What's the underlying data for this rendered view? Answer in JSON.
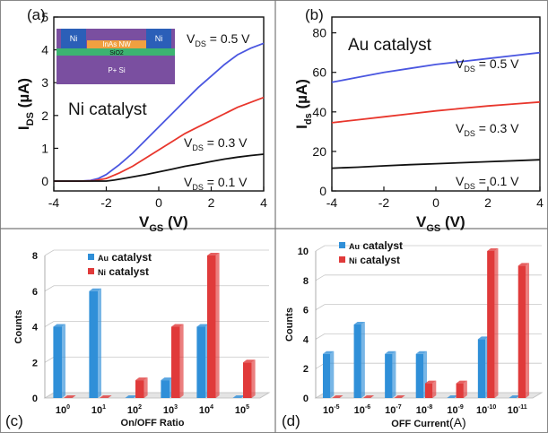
{
  "colors": {
    "blue": "#4a56e0",
    "red": "#e8362c",
    "black": "#111111",
    "bar_blue": "#2f8fd8",
    "bar_red": "#e03a3a",
    "grid": "#c8c8c8",
    "frame": "#6a6a6a"
  },
  "chart_data": [
    {
      "panel": "(a)",
      "type": "line",
      "annotation": "Ni catalyst",
      "xlabel_main": "V",
      "xlabel_sub": "GS",
      "xlabel_unit": "(V)",
      "ylabel_main": "I",
      "ylabel_sub": "DS",
      "ylabel_unit": "(µA)",
      "xlim": [
        -4,
        4
      ],
      "ylim": [
        -0.3,
        5
      ],
      "xticks": [
        "-4",
        "-2",
        "0",
        "2",
        "4"
      ],
      "yticks": [
        "0",
        "1",
        "2",
        "3",
        "4",
        "5"
      ],
      "inset_labels": {
        "left": "Ni",
        "right": "Ni",
        "wire": "InAs NW",
        "oxide": "SiO2",
        "substrate": "P+ Si"
      },
      "series": [
        {
          "name": "V_DS = 0.5 V",
          "label_main": "V",
          "label_sub": "DS",
          "label_val": "= 0.5 V",
          "color": "blue",
          "points": [
            [
              -4,
              0
            ],
            [
              -3,
              0
            ],
            [
              -2.6,
              0.02
            ],
            [
              -2.3,
              0.08
            ],
            [
              -2,
              0.2
            ],
            [
              -1.5,
              0.5
            ],
            [
              -1,
              0.85
            ],
            [
              -0.5,
              1.25
            ],
            [
              0,
              1.65
            ],
            [
              0.5,
              2.05
            ],
            [
              1,
              2.45
            ],
            [
              1.5,
              2.85
            ],
            [
              2,
              3.2
            ],
            [
              2.5,
              3.55
            ],
            [
              3,
              3.85
            ],
            [
              3.5,
              4.05
            ],
            [
              4,
              4.2
            ]
          ]
        },
        {
          "name": "V_DS = 0.3 V",
          "label_main": "V",
          "label_sub": "DS",
          "label_val": "= 0.3 V",
          "color": "red",
          "points": [
            [
              -4,
              0
            ],
            [
              -3,
              0
            ],
            [
              -2.5,
              0.01
            ],
            [
              -2,
              0.08
            ],
            [
              -1.5,
              0.25
            ],
            [
              -1,
              0.45
            ],
            [
              -0.5,
              0.7
            ],
            [
              0,
              0.95
            ],
            [
              0.5,
              1.2
            ],
            [
              1,
              1.45
            ],
            [
              1.5,
              1.65
            ],
            [
              2,
              1.85
            ],
            [
              2.5,
              2.05
            ],
            [
              3,
              2.25
            ],
            [
              3.5,
              2.4
            ],
            [
              4,
              2.55
            ]
          ]
        },
        {
          "name": "V_DS = 0.1 V",
          "label_main": "V",
          "label_sub": "DS",
          "label_val": "= 0.1 V",
          "color": "black",
          "points": [
            [
              -4,
              0
            ],
            [
              -3,
              0
            ],
            [
              -2,
              0
            ],
            [
              -1.7,
              0.03
            ],
            [
              -1.2,
              0.1
            ],
            [
              -0.5,
              0.2
            ],
            [
              0,
              0.28
            ],
            [
              0.5,
              0.36
            ],
            [
              1,
              0.45
            ],
            [
              1.5,
              0.52
            ],
            [
              2,
              0.6
            ],
            [
              2.5,
              0.67
            ],
            [
              3,
              0.73
            ],
            [
              3.5,
              0.78
            ],
            [
              4,
              0.82
            ]
          ]
        }
      ]
    },
    {
      "panel": "(b)",
      "type": "line",
      "annotation": "Au catalyst",
      "xlabel_main": "V",
      "xlabel_sub": "GS",
      "xlabel_unit": "(V)",
      "ylabel_main": "I",
      "ylabel_sub": "ds",
      "ylabel_unit": "(µA)",
      "xlim": [
        -4,
        4
      ],
      "ylim": [
        0,
        88
      ],
      "xticks": [
        "-4",
        "-2",
        "0",
        "2",
        "4"
      ],
      "yticks": [
        "0",
        "20",
        "40",
        "60",
        "80"
      ],
      "series": [
        {
          "name": "V_DS = 0.5 V",
          "label_main": "V",
          "label_sub": "DS",
          "label_val": "= 0.5 V",
          "color": "blue",
          "points": [
            [
              -4,
              55
            ],
            [
              -3,
              57.5
            ],
            [
              -2,
              60
            ],
            [
              -1,
              62
            ],
            [
              0,
              64
            ],
            [
              1,
              65.5
            ],
            [
              2,
              67
            ],
            [
              3,
              68.5
            ],
            [
              4,
              70
            ]
          ]
        },
        {
          "name": "V_DS = 0.3 V",
          "label_main": "V",
          "label_sub": "DS",
          "label_val": "= 0.3 V",
          "color": "red",
          "points": [
            [
              -4,
              34.5
            ],
            [
              -3,
              36
            ],
            [
              -2,
              37.5
            ],
            [
              -1,
              39
            ],
            [
              0,
              40.5
            ],
            [
              1,
              41.8
            ],
            [
              2,
              43
            ],
            [
              3,
              44
            ],
            [
              4,
              45
            ]
          ]
        },
        {
          "name": "V_DS = 0.1 V",
          "label_main": "V",
          "label_sub": "DS",
          "label_val": "= 0.1 V",
          "color": "black",
          "points": [
            [
              -4,
              11.5
            ],
            [
              -3,
              12
            ],
            [
              -2,
              12.7
            ],
            [
              -1,
              13.3
            ],
            [
              0,
              13.8
            ],
            [
              1,
              14.3
            ],
            [
              2,
              14.8
            ],
            [
              3,
              15.3
            ],
            [
              4,
              15.8
            ]
          ]
        }
      ]
    },
    {
      "panel": "(c)",
      "type": "bar",
      "xlabel": "On/OFF Ratio",
      "ylabel": "Counts",
      "ylim": [
        0,
        8
      ],
      "yticks": [
        "0",
        "2",
        "4",
        "6",
        "8"
      ],
      "categories": [
        {
          "base": "10",
          "exp": "0"
        },
        {
          "base": "10",
          "exp": "1"
        },
        {
          "base": "10",
          "exp": "2"
        },
        {
          "base": "10",
          "exp": "3"
        },
        {
          "base": "10",
          "exp": "4"
        },
        {
          "base": "10",
          "exp": "5"
        }
      ],
      "series": [
        {
          "name": "Au catalyst",
          "name_small": "Au",
          "name_rest": "catalyst",
          "color": "bar_blue",
          "values": [
            4,
            6,
            0,
            1,
            4,
            0
          ]
        },
        {
          "name": "Ni catalyst",
          "name_small": "Ni",
          "name_rest": "catalyst",
          "color": "bar_red",
          "values": [
            0,
            0,
            1,
            4,
            8,
            2
          ]
        }
      ]
    },
    {
      "panel": "(d)",
      "type": "bar",
      "xlabel_main": "OFF Current",
      "xlabel_unit": "(A)",
      "ylabel": "Counts",
      "ylim": [
        0,
        10
      ],
      "yticks": [
        "0",
        "2",
        "4",
        "6",
        "8",
        "10"
      ],
      "categories": [
        {
          "base": "10",
          "exp": "-5"
        },
        {
          "base": "10",
          "exp": "-6"
        },
        {
          "base": "10",
          "exp": "-7"
        },
        {
          "base": "10",
          "exp": "-8"
        },
        {
          "base": "10",
          "exp": "-9"
        },
        {
          "base": "10",
          "exp": "-10"
        },
        {
          "base": "10",
          "exp": "-11"
        }
      ],
      "series": [
        {
          "name": "Au catalyst",
          "name_small": "Au",
          "name_rest": "catalyst",
          "color": "bar_blue",
          "values": [
            3,
            5,
            3,
            3,
            0,
            4,
            0
          ]
        },
        {
          "name": "Ni catalyst",
          "name_small": "Ni",
          "name_rest": "catalyst",
          "color": "bar_red",
          "values": [
            0,
            0,
            0,
            1,
            1,
            10,
            9
          ]
        }
      ]
    }
  ]
}
